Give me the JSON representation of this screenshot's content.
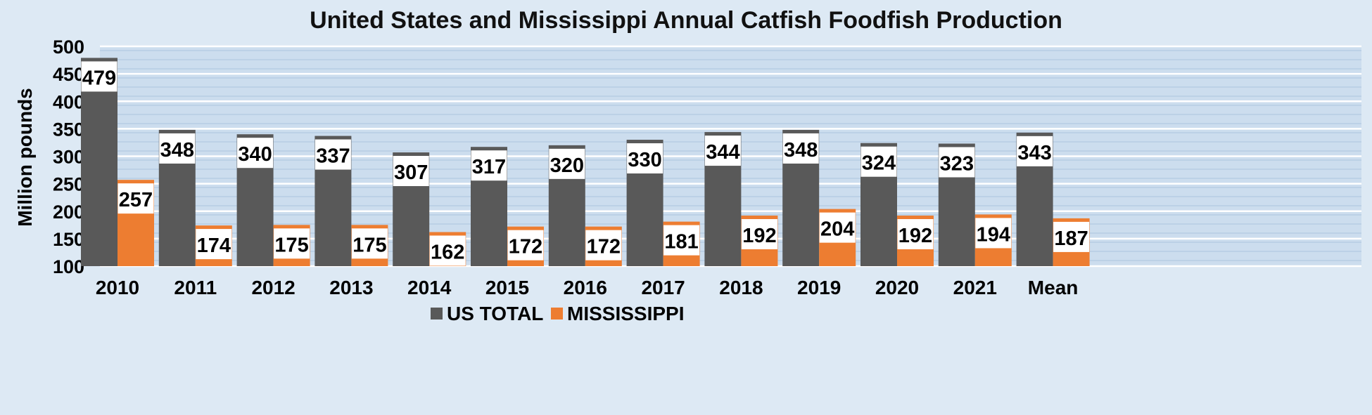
{
  "chart_data": {
    "type": "bar",
    "title": "United States and Mississippi Annual Catfish Foodfish Production",
    "ylabel": "Million pounds",
    "xlabel": "",
    "ylim": [
      100,
      500
    ],
    "yticks": [
      100,
      150,
      200,
      250,
      300,
      350,
      400,
      450,
      500
    ],
    "grid": true,
    "legend_position": "bottom",
    "categories": [
      "2010",
      "2011",
      "2012",
      "2013",
      "2014",
      "2015",
      "2016",
      "2017",
      "2018",
      "2019",
      "2020",
      "2021",
      "Mean"
    ],
    "series": [
      {
        "name": "US TOTAL",
        "color": "#595959",
        "values": [
          479,
          348,
          340,
          337,
          307,
          317,
          320,
          330,
          344,
          348,
          324,
          323,
          343
        ]
      },
      {
        "name": "MISSISSIPPI",
        "color": "#ed7d31",
        "values": [
          257,
          174,
          175,
          175,
          162,
          172,
          172,
          181,
          192,
          204,
          192,
          194,
          187
        ]
      }
    ]
  }
}
